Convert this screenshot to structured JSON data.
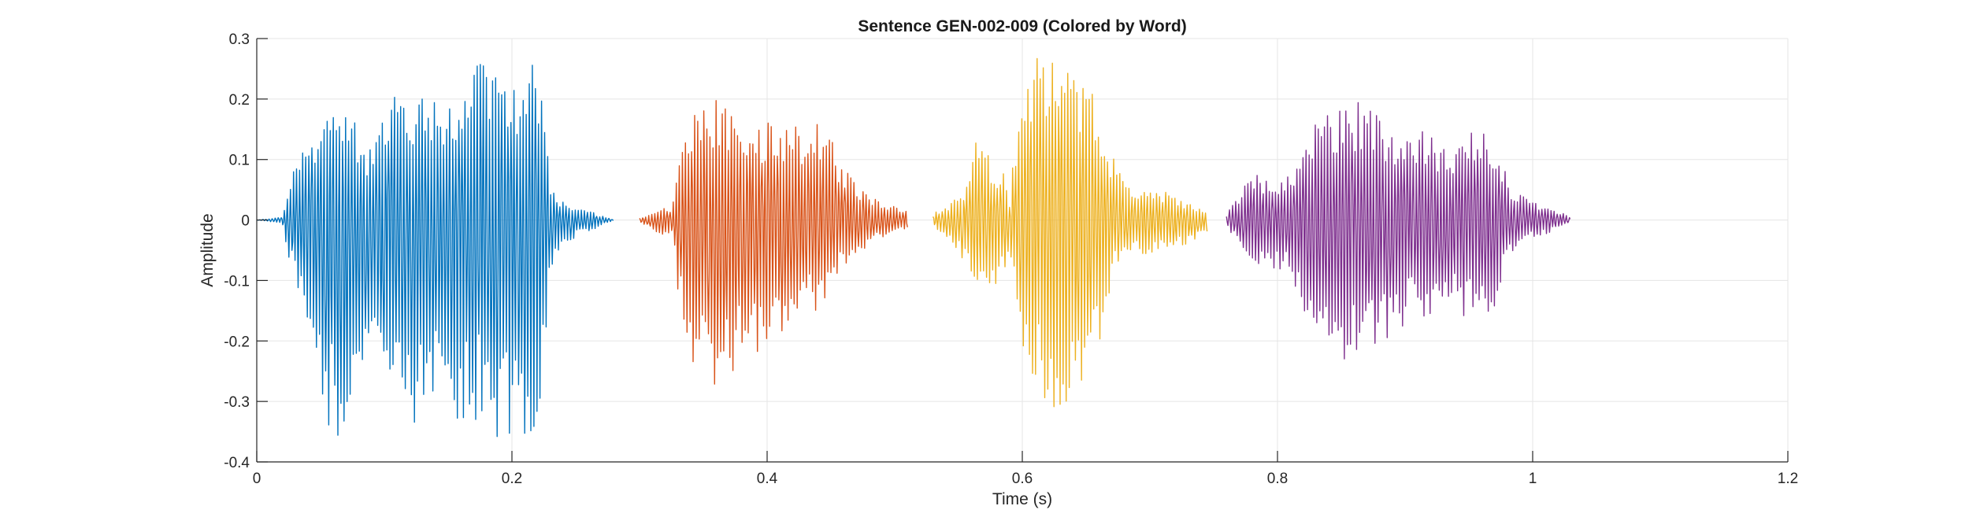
{
  "chart_data": {
    "type": "line",
    "title": "Sentence GEN-002-009 (Colored by Word)",
    "xlabel": "Time (s)",
    "ylabel": "Amplitude",
    "xlim": [
      0,
      1.2
    ],
    "ylim": [
      -0.4,
      0.3
    ],
    "xticks": [
      0,
      0.2,
      0.4,
      0.6,
      0.8,
      1,
      1.2
    ],
    "xtick_labels": [
      "0",
      "0.2",
      "0.4",
      "0.6",
      "0.8",
      "1",
      "1.2"
    ],
    "yticks": [
      -0.4,
      -0.3,
      -0.2,
      -0.1,
      0,
      0.1,
      0.2,
      0.3
    ],
    "ytick_labels": [
      "-0.4",
      "-0.3",
      "-0.2",
      "-0.1",
      "0",
      "0.1",
      "0.2",
      "0.3"
    ],
    "grid": true,
    "legend": "none",
    "series": [
      {
        "color": "#0072BD",
        "x_range": [
          0,
          0.28
        ],
        "envelope": [
          {
            "x": 0.0,
            "top": 0.0,
            "bottom": 0.0
          },
          {
            "x": 0.02,
            "top": 0.005,
            "bottom": -0.005
          },
          {
            "x": 0.025,
            "top": 0.06,
            "bottom": -0.07
          },
          {
            "x": 0.035,
            "top": 0.12,
            "bottom": -0.15
          },
          {
            "x": 0.045,
            "top": 0.16,
            "bottom": -0.25
          },
          {
            "x": 0.055,
            "top": 0.2,
            "bottom": -0.34
          },
          {
            "x": 0.065,
            "top": 0.21,
            "bottom": -0.36
          },
          {
            "x": 0.075,
            "top": 0.18,
            "bottom": -0.33
          },
          {
            "x": 0.085,
            "top": 0.12,
            "bottom": -0.23
          },
          {
            "x": 0.095,
            "top": 0.15,
            "bottom": -0.24
          },
          {
            "x": 0.105,
            "top": 0.2,
            "bottom": -0.3
          },
          {
            "x": 0.115,
            "top": 0.22,
            "bottom": -0.33
          },
          {
            "x": 0.125,
            "top": 0.2,
            "bottom": -0.35
          },
          {
            "x": 0.135,
            "top": 0.2,
            "bottom": -0.31
          },
          {
            "x": 0.145,
            "top": 0.23,
            "bottom": -0.3
          },
          {
            "x": 0.155,
            "top": 0.2,
            "bottom": -0.36
          },
          {
            "x": 0.165,
            "top": 0.24,
            "bottom": -0.34
          },
          {
            "x": 0.175,
            "top": 0.27,
            "bottom": -0.33
          },
          {
            "x": 0.185,
            "top": 0.25,
            "bottom": -0.36
          },
          {
            "x": 0.195,
            "top": 0.26,
            "bottom": -0.37
          },
          {
            "x": 0.205,
            "top": 0.22,
            "bottom": -0.38
          },
          {
            "x": 0.213,
            "top": 0.27,
            "bottom": -0.38
          },
          {
            "x": 0.22,
            "top": 0.28,
            "bottom": -0.37
          },
          {
            "x": 0.225,
            "top": 0.2,
            "bottom": -0.25
          },
          {
            "x": 0.23,
            "top": 0.06,
            "bottom": -0.08
          },
          {
            "x": 0.24,
            "top": 0.03,
            "bottom": -0.04
          },
          {
            "x": 0.255,
            "top": 0.02,
            "bottom": -0.025
          },
          {
            "x": 0.27,
            "top": 0.008,
            "bottom": -0.01
          },
          {
            "x": 0.28,
            "top": 0.0,
            "bottom": 0.0
          }
        ]
      },
      {
        "color": "#D95319",
        "x_range": [
          0.3,
          0.51
        ],
        "envelope": [
          {
            "x": 0.3,
            "top": 0.005,
            "bottom": -0.005
          },
          {
            "x": 0.31,
            "top": 0.01,
            "bottom": -0.015
          },
          {
            "x": 0.32,
            "top": 0.02,
            "bottom": -0.03
          },
          {
            "x": 0.325,
            "top": 0.02,
            "bottom": -0.02
          },
          {
            "x": 0.33,
            "top": 0.09,
            "bottom": -0.12
          },
          {
            "x": 0.34,
            "top": 0.2,
            "bottom": -0.23
          },
          {
            "x": 0.35,
            "top": 0.21,
            "bottom": -0.29
          },
          {
            "x": 0.36,
            "top": 0.2,
            "bottom": -0.27
          },
          {
            "x": 0.37,
            "top": 0.19,
            "bottom": -0.26
          },
          {
            "x": 0.38,
            "top": 0.18,
            "bottom": -0.25
          },
          {
            "x": 0.39,
            "top": 0.17,
            "bottom": -0.24
          },
          {
            "x": 0.4,
            "top": 0.17,
            "bottom": -0.22
          },
          {
            "x": 0.41,
            "top": 0.16,
            "bottom": -0.2
          },
          {
            "x": 0.42,
            "top": 0.16,
            "bottom": -0.18
          },
          {
            "x": 0.43,
            "top": 0.16,
            "bottom": -0.16
          },
          {
            "x": 0.44,
            "top": 0.16,
            "bottom": -0.16
          },
          {
            "x": 0.45,
            "top": 0.16,
            "bottom": -0.15
          },
          {
            "x": 0.455,
            "top": 0.1,
            "bottom": -0.1
          },
          {
            "x": 0.47,
            "top": 0.06,
            "bottom": -0.06
          },
          {
            "x": 0.49,
            "top": 0.03,
            "bottom": -0.03
          },
          {
            "x": 0.51,
            "top": 0.015,
            "bottom": -0.015
          }
        ]
      },
      {
        "color": "#EDB120",
        "x_range": [
          0.53,
          0.745
        ],
        "envelope": [
          {
            "x": 0.53,
            "top": 0.01,
            "bottom": -0.01
          },
          {
            "x": 0.545,
            "top": 0.03,
            "bottom": -0.04
          },
          {
            "x": 0.555,
            "top": 0.06,
            "bottom": -0.08
          },
          {
            "x": 0.565,
            "top": 0.14,
            "bottom": -0.12
          },
          {
            "x": 0.575,
            "top": 0.11,
            "bottom": -0.13
          },
          {
            "x": 0.585,
            "top": 0.08,
            "bottom": -0.1
          },
          {
            "x": 0.59,
            "top": 0.03,
            "bottom": -0.04
          },
          {
            "x": 0.595,
            "top": 0.15,
            "bottom": -0.15
          },
          {
            "x": 0.605,
            "top": 0.28,
            "bottom": -0.3
          },
          {
            "x": 0.615,
            "top": 0.29,
            "bottom": -0.31
          },
          {
            "x": 0.625,
            "top": 0.3,
            "bottom": -0.32
          },
          {
            "x": 0.635,
            "top": 0.29,
            "bottom": -0.31
          },
          {
            "x": 0.645,
            "top": 0.26,
            "bottom": -0.29
          },
          {
            "x": 0.655,
            "top": 0.22,
            "bottom": -0.25
          },
          {
            "x": 0.665,
            "top": 0.14,
            "bottom": -0.17
          },
          {
            "x": 0.67,
            "top": 0.11,
            "bottom": -0.1
          },
          {
            "x": 0.68,
            "top": 0.06,
            "bottom": -0.05
          },
          {
            "x": 0.69,
            "top": 0.06,
            "bottom": -0.06
          },
          {
            "x": 0.71,
            "top": 0.05,
            "bottom": -0.05
          },
          {
            "x": 0.73,
            "top": 0.03,
            "bottom": -0.04
          },
          {
            "x": 0.745,
            "top": 0.01,
            "bottom": -0.02
          }
        ]
      },
      {
        "color": "#7E2F8E",
        "x_range": [
          0.76,
          1.03
        ],
        "envelope": [
          {
            "x": 0.76,
            "top": 0.01,
            "bottom": -0.01
          },
          {
            "x": 0.77,
            "top": 0.04,
            "bottom": -0.04
          },
          {
            "x": 0.775,
            "top": 0.06,
            "bottom": -0.06
          },
          {
            "x": 0.785,
            "top": 0.08,
            "bottom": -0.08
          },
          {
            "x": 0.795,
            "top": 0.07,
            "bottom": -0.09
          },
          {
            "x": 0.805,
            "top": 0.06,
            "bottom": -0.08
          },
          {
            "x": 0.815,
            "top": 0.1,
            "bottom": -0.12
          },
          {
            "x": 0.825,
            "top": 0.14,
            "bottom": -0.17
          },
          {
            "x": 0.835,
            "top": 0.18,
            "bottom": -0.21
          },
          {
            "x": 0.845,
            "top": 0.2,
            "bottom": -0.23
          },
          {
            "x": 0.855,
            "top": 0.21,
            "bottom": -0.24
          },
          {
            "x": 0.865,
            "top": 0.2,
            "bottom": -0.23
          },
          {
            "x": 0.875,
            "top": 0.18,
            "bottom": -0.21
          },
          {
            "x": 0.885,
            "top": 0.17,
            "bottom": -0.2
          },
          {
            "x": 0.895,
            "top": 0.15,
            "bottom": -0.19
          },
          {
            "x": 0.905,
            "top": 0.14,
            "bottom": -0.17
          },
          {
            "x": 0.915,
            "top": 0.15,
            "bottom": -0.17
          },
          {
            "x": 0.925,
            "top": 0.13,
            "bottom": -0.15
          },
          {
            "x": 0.935,
            "top": 0.11,
            "bottom": -0.13
          },
          {
            "x": 0.945,
            "top": 0.14,
            "bottom": -0.16
          },
          {
            "x": 0.955,
            "top": 0.15,
            "bottom": -0.17
          },
          {
            "x": 0.965,
            "top": 0.16,
            "bottom": -0.18
          },
          {
            "x": 0.975,
            "top": 0.1,
            "bottom": -0.11
          },
          {
            "x": 0.985,
            "top": 0.05,
            "bottom": -0.05
          },
          {
            "x": 1.0,
            "top": 0.03,
            "bottom": -0.03
          },
          {
            "x": 1.015,
            "top": 0.02,
            "bottom": -0.02
          },
          {
            "x": 1.03,
            "top": 0.005,
            "bottom": -0.005
          }
        ]
      }
    ]
  }
}
